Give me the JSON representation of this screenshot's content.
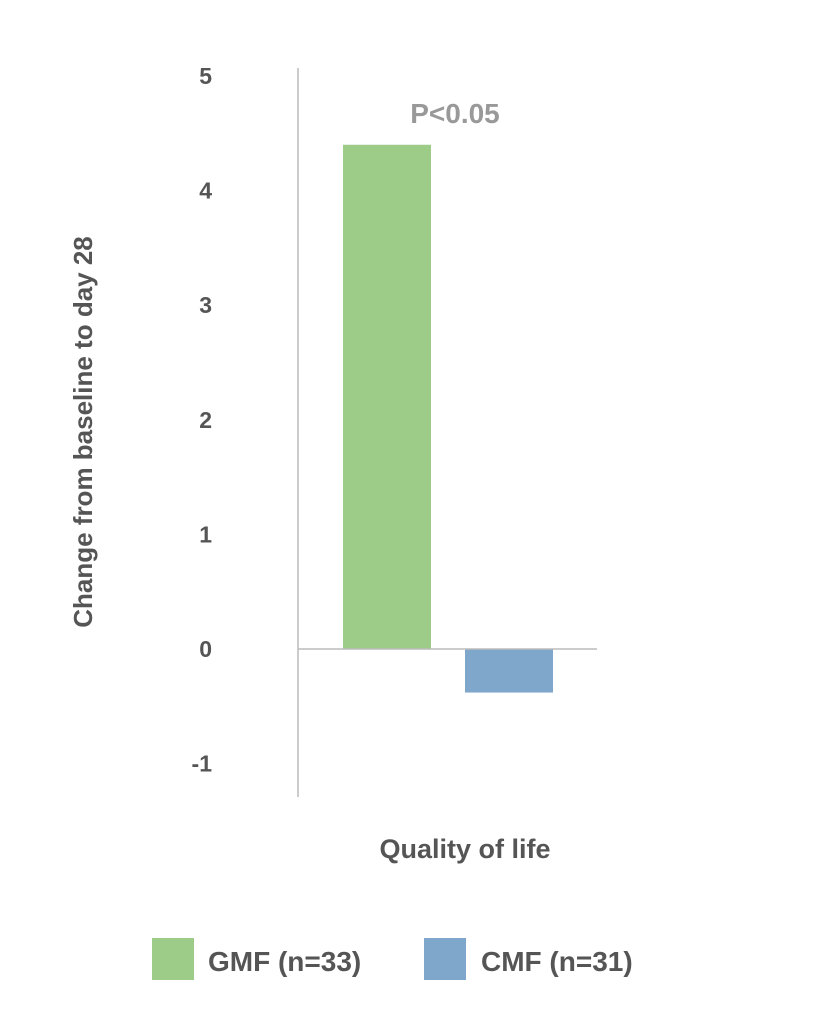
{
  "chart_data": {
    "type": "bar",
    "categories": [
      "Quality of life"
    ],
    "series": [
      {
        "name": "GMF (n=33)",
        "values": [
          4.4
        ],
        "color": "#9ccc88"
      },
      {
        "name": "CMF (n=31)",
        "values": [
          -0.38
        ],
        "color": "#7fa7cb"
      }
    ],
    "xlabel": "Quality of life",
    "ylabel": "Change from baseline to day 28",
    "ylim": [
      -1.2,
      5
    ],
    "yticks": [
      5,
      4,
      3,
      2,
      1,
      0,
      -1
    ],
    "grid": false,
    "legend": "bottom",
    "annotation": "P<0.05",
    "annotation_color": "#999999",
    "text_color": "#555555",
    "axis_color": "#bbbbbb"
  }
}
